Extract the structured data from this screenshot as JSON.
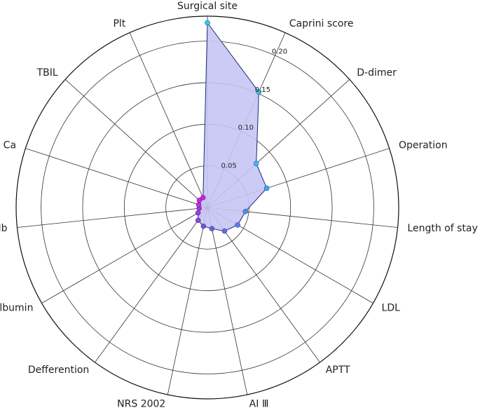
{
  "chart_data": {
    "type": "radar",
    "categories": [
      "Surgical site",
      "Caprini score",
      "D-dimer",
      "Operation",
      "Length of stay",
      "LDL",
      "APTT",
      "AI Ⅲ",
      "NRS 2002",
      "Defferention",
      "Albumin",
      "Hb",
      "Ca",
      "TBIL",
      "Plt"
    ],
    "values": [
      0.222,
      0.152,
      0.079,
      0.075,
      0.046,
      0.042,
      0.035,
      0.026,
      0.023,
      0.019,
      0.013,
      0.01,
      0.011,
      0.013,
      0.013
    ],
    "marker_colors": [
      "#22d3ee",
      "#2ec8f0",
      "#38bdf8",
      "#3aa8f5",
      "#4a90f0",
      "#5a7cf0",
      "#6668ee",
      "#6f5ce8",
      "#7c4fe4",
      "#9040e0",
      "#a238e0",
      "#b330e0",
      "#c428e0",
      "#d420e0",
      "#e018e0"
    ],
    "fill_color": "#c5c5f5",
    "line_color": "#1e2a6e",
    "ylim": [
      0,
      0.23
    ],
    "yticks": [
      0.05,
      {
        "value": 0.1,
        "label": "0.10"
      },
      0.15,
      {
        "value": 0.2,
        "label": "0.20"
      }
    ]
  }
}
